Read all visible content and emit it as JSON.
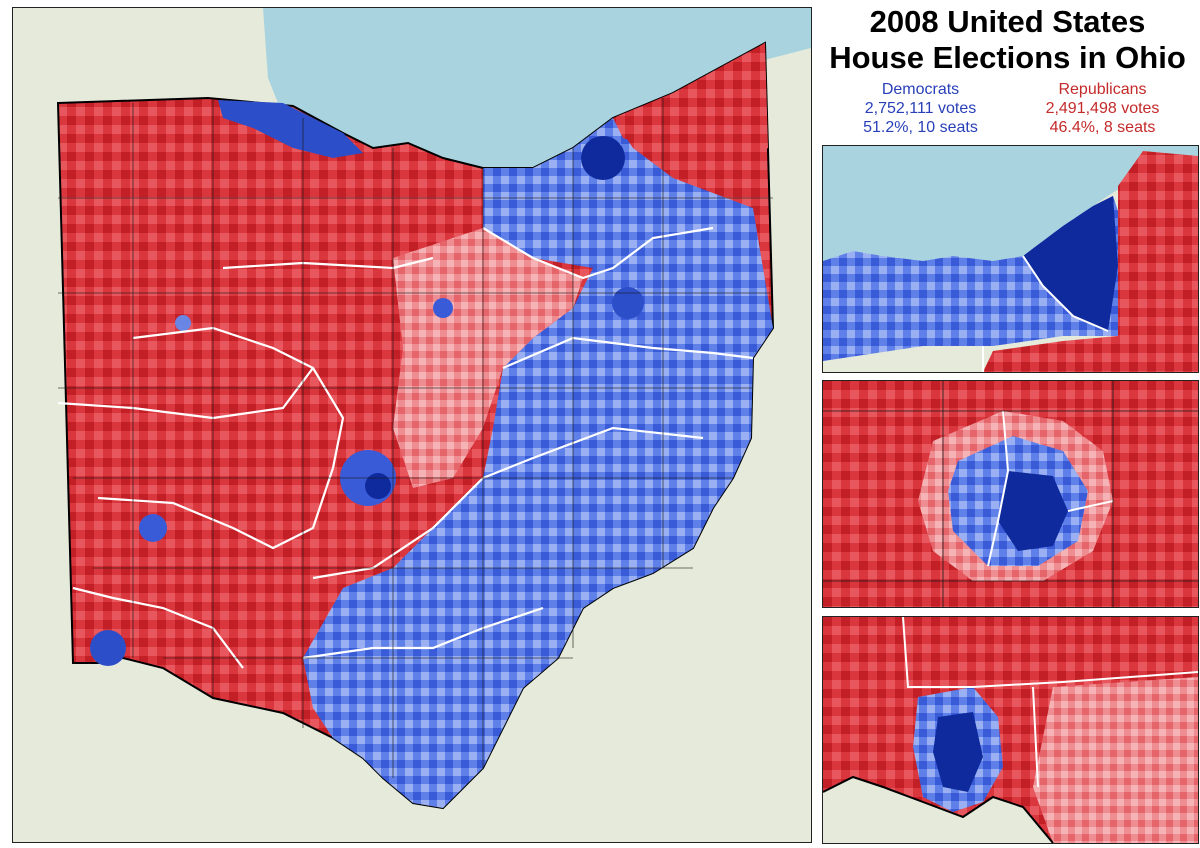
{
  "title": {
    "line1": "2008 United States",
    "line2": "House Elections in Ohio"
  },
  "parties": {
    "democrats": {
      "name": "Democrats",
      "votes_text": "2,752,111 votes",
      "share_text": "51.2%, 10 seats",
      "color": "#2940b8"
    },
    "republicans": {
      "name": "Republicans",
      "votes_text": "2,491,498 votes",
      "share_text": "46.4%, 8 seats",
      "color": "#c42a2a"
    }
  },
  "palette": {
    "lake": "#a9d3de",
    "land_background": "#e3e8d6",
    "rep_dark": "#b3141c",
    "rep_mid": "#e0444b",
    "rep_light": "#f2a3a6",
    "dem_dark": "#0f2a9c",
    "dem_mid": "#3f64e0",
    "dem_light": "#a9bdf5",
    "district_border": "#ffffff",
    "county_border": "#1a1a1a"
  }
}
